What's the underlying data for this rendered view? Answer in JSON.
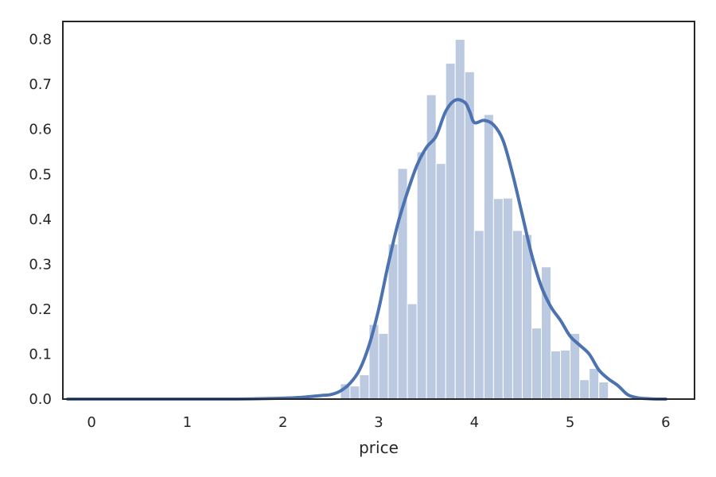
{
  "chart_data": {
    "type": "bar",
    "subtype": "histogram-with-kde",
    "title": "",
    "xlabel": "price",
    "ylabel": "",
    "xlim": [
      -0.3,
      6.3
    ],
    "ylim": [
      0.0,
      0.84
    ],
    "xticks": [
      0,
      1,
      2,
      3,
      4,
      5,
      6
    ],
    "xtick_labels": [
      "0",
      "1",
      "2",
      "3",
      "4",
      "5",
      "6"
    ],
    "yticks": [
      0.0,
      0.1,
      0.2,
      0.3,
      0.4,
      0.5,
      0.6,
      0.7,
      0.8
    ],
    "ytick_labels": [
      "0.0",
      "0.1",
      "0.2",
      "0.3",
      "0.4",
      "0.5",
      "0.6",
      "0.7",
      "0.8"
    ],
    "grid": false,
    "legend": "none",
    "colors": {
      "bars": "#4c72b0",
      "bar_opacity": 0.38,
      "kde_line": "#4c72b0",
      "axes_frame": "#262626",
      "text": "#262626"
    },
    "histogram": {
      "bin_width": 0.1,
      "bin_starts": [
        2.6,
        2.7,
        2.8,
        2.9,
        3.0,
        3.1,
        3.2,
        3.3,
        3.4,
        3.5,
        3.6,
        3.7,
        3.8,
        3.9,
        4.0,
        4.1,
        4.2,
        4.3,
        4.4,
        4.5,
        4.6,
        4.7,
        4.8,
        4.9,
        5.0,
        5.1,
        5.2,
        5.3,
        5.4,
        5.5,
        5.6
      ],
      "densities": [
        0.034,
        0.029,
        0.054,
        0.166,
        0.146,
        0.345,
        0.513,
        0.212,
        0.55,
        0.677,
        0.524,
        0.747,
        0.8,
        0.728,
        0.375,
        0.633,
        0.446,
        0.447,
        0.375,
        0.366,
        0.158,
        0.294,
        0.107,
        0.109,
        0.146,
        0.043,
        0.068,
        0.038,
        0.0,
        0.0,
        0.0
      ]
    },
    "kde": {
      "x": [
        -0.25,
        0.5,
        1.0,
        1.5,
        2.0,
        2.2,
        2.4,
        2.5,
        2.6,
        2.7,
        2.8,
        2.9,
        3.0,
        3.1,
        3.2,
        3.3,
        3.4,
        3.5,
        3.6,
        3.7,
        3.8,
        3.9,
        3.95,
        4.0,
        4.1,
        4.2,
        4.3,
        4.4,
        4.5,
        4.6,
        4.7,
        4.8,
        4.9,
        5.0,
        5.1,
        5.2,
        5.3,
        5.4,
        5.5,
        5.6,
        5.7,
        5.8,
        5.9,
        6.0
      ],
      "y": [
        0.0,
        0.0,
        0.0,
        0.0,
        0.002,
        0.004,
        0.008,
        0.01,
        0.018,
        0.035,
        0.065,
        0.12,
        0.2,
        0.3,
        0.39,
        0.46,
        0.52,
        0.56,
        0.585,
        0.64,
        0.665,
        0.66,
        0.64,
        0.615,
        0.62,
        0.61,
        0.575,
        0.5,
        0.41,
        0.32,
        0.25,
        0.205,
        0.175,
        0.14,
        0.12,
        0.1,
        0.065,
        0.045,
        0.03,
        0.01,
        0.003,
        0.001,
        0.0,
        0.0
      ]
    }
  }
}
